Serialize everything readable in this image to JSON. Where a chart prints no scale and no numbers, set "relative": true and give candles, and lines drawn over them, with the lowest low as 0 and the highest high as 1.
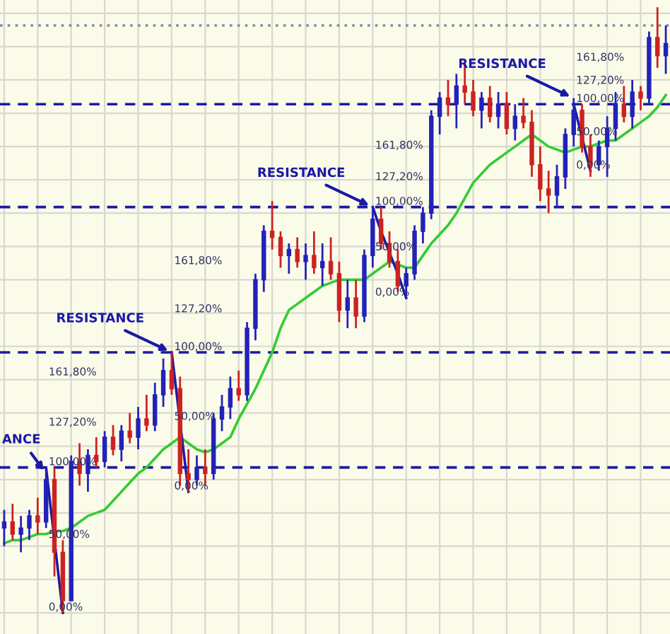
{
  "chart_data": {
    "type": "candlestick",
    "relative": true,
    "grid": true,
    "categories": [
      null,
      null,
      null,
      null,
      null,
      null,
      null,
      null,
      null,
      null,
      null,
      null,
      null,
      null,
      null,
      null,
      null,
      null,
      null,
      null,
      null,
      null,
      null,
      null,
      null,
      null,
      null,
      null,
      null,
      null,
      null,
      null,
      null,
      null,
      null,
      null,
      null,
      null,
      null,
      null,
      null,
      null,
      null,
      null,
      null,
      null,
      null,
      null,
      null,
      null,
      null,
      null,
      null,
      null,
      null,
      null,
      null,
      null,
      null,
      null,
      null,
      null,
      null,
      null,
      null,
      null,
      null,
      null,
      null,
      null,
      null,
      null,
      null,
      null,
      null,
      null,
      null,
      null,
      null,
      null
    ],
    "ohlc": [
      [
        0.14,
        0.17,
        0.11,
        0.15
      ],
      [
        0.15,
        0.18,
        0.12,
        0.13
      ],
      [
        0.13,
        0.16,
        0.1,
        0.14
      ],
      [
        0.14,
        0.17,
        0.12,
        0.16
      ],
      [
        0.16,
        0.19,
        0.13,
        0.15
      ],
      [
        0.15,
        0.24,
        0.14,
        0.22
      ],
      [
        0.22,
        0.24,
        0.06,
        0.1
      ],
      [
        0.1,
        0.12,
        0.0,
        0.02
      ],
      [
        0.02,
        0.26,
        0.02,
        0.25
      ],
      [
        0.25,
        0.28,
        0.21,
        0.23
      ],
      [
        0.23,
        0.27,
        0.2,
        0.26
      ],
      [
        0.26,
        0.29,
        0.24,
        0.25
      ],
      [
        0.25,
        0.3,
        0.24,
        0.29
      ],
      [
        0.29,
        0.31,
        0.26,
        0.27
      ],
      [
        0.27,
        0.31,
        0.25,
        0.3
      ],
      [
        0.3,
        0.33,
        0.28,
        0.29
      ],
      [
        0.29,
        0.34,
        0.27,
        0.32
      ],
      [
        0.32,
        0.36,
        0.3,
        0.31
      ],
      [
        0.31,
        0.38,
        0.3,
        0.36
      ],
      [
        0.36,
        0.42,
        0.34,
        0.4
      ],
      [
        0.4,
        0.43,
        0.36,
        0.37
      ],
      [
        0.37,
        0.39,
        0.21,
        0.23
      ],
      [
        0.23,
        0.27,
        0.2,
        0.22
      ],
      [
        0.22,
        0.26,
        0.21,
        0.24
      ],
      [
        0.24,
        0.27,
        0.21,
        0.23
      ],
      [
        0.23,
        0.33,
        0.22,
        0.32
      ],
      [
        0.32,
        0.36,
        0.3,
        0.34
      ],
      [
        0.34,
        0.39,
        0.32,
        0.37
      ],
      [
        0.37,
        0.4,
        0.35,
        0.36
      ],
      [
        0.36,
        0.48,
        0.35,
        0.47
      ],
      [
        0.47,
        0.56,
        0.45,
        0.55
      ],
      [
        0.55,
        0.64,
        0.53,
        0.63
      ],
      [
        0.63,
        0.68,
        0.6,
        0.62
      ],
      [
        0.62,
        0.63,
        0.57,
        0.59
      ],
      [
        0.59,
        0.61,
        0.56,
        0.6
      ],
      [
        0.6,
        0.62,
        0.57,
        0.58
      ],
      [
        0.58,
        0.61,
        0.55,
        0.59
      ],
      [
        0.59,
        0.63,
        0.56,
        0.57
      ],
      [
        0.57,
        0.61,
        0.54,
        0.58
      ],
      [
        0.58,
        0.62,
        0.55,
        0.56
      ],
      [
        0.56,
        0.58,
        0.48,
        0.5
      ],
      [
        0.5,
        0.55,
        0.47,
        0.52
      ],
      [
        0.52,
        0.55,
        0.47,
        0.49
      ],
      [
        0.49,
        0.6,
        0.48,
        0.59
      ],
      [
        0.59,
        0.67,
        0.57,
        0.65
      ],
      [
        0.65,
        0.67,
        0.6,
        0.61
      ],
      [
        0.61,
        0.63,
        0.57,
        0.58
      ],
      [
        0.58,
        0.6,
        0.53,
        0.54
      ],
      [
        0.54,
        0.57,
        0.52,
        0.56
      ],
      [
        0.56,
        0.64,
        0.55,
        0.63
      ],
      [
        0.63,
        0.67,
        0.61,
        0.66
      ],
      [
        0.66,
        0.83,
        0.65,
        0.82
      ],
      [
        0.82,
        0.86,
        0.79,
        0.85
      ],
      [
        0.85,
        0.88,
        0.82,
        0.84
      ],
      [
        0.84,
        0.89,
        0.8,
        0.87
      ],
      [
        0.87,
        0.91,
        0.84,
        0.86
      ],
      [
        0.86,
        0.88,
        0.82,
        0.83
      ],
      [
        0.83,
        0.86,
        0.8,
        0.85
      ],
      [
        0.85,
        0.87,
        0.81,
        0.82
      ],
      [
        0.82,
        0.86,
        0.8,
        0.84
      ],
      [
        0.84,
        0.86,
        0.79,
        0.8
      ],
      [
        0.8,
        0.84,
        0.78,
        0.82
      ],
      [
        0.82,
        0.85,
        0.8,
        0.81
      ],
      [
        0.81,
        0.83,
        0.72,
        0.74
      ],
      [
        0.74,
        0.77,
        0.68,
        0.7
      ],
      [
        0.7,
        0.73,
        0.66,
        0.69
      ],
      [
        0.69,
        0.74,
        0.67,
        0.72
      ],
      [
        0.72,
        0.8,
        0.7,
        0.79
      ],
      [
        0.79,
        0.85,
        0.77,
        0.83
      ],
      [
        0.83,
        0.84,
        0.76,
        0.77
      ],
      [
        0.77,
        0.79,
        0.72,
        0.74
      ],
      [
        0.74,
        0.78,
        0.73,
        0.77
      ],
      [
        0.77,
        0.82,
        0.72,
        0.8
      ],
      [
        0.8,
        0.86,
        0.78,
        0.84
      ],
      [
        0.84,
        0.87,
        0.81,
        0.82
      ],
      [
        0.82,
        0.88,
        0.8,
        0.86
      ],
      [
        0.86,
        0.87,
        0.83,
        0.85
      ],
      [
        0.85,
        0.96,
        0.84,
        0.95
      ],
      [
        0.95,
        1.0,
        0.9,
        0.92
      ],
      [
        0.92,
        0.97,
        0.89,
        0.94
      ]
    ],
    "colors": [
      "#2222bb",
      "#cc2222",
      "#2222bb",
      "#2222bb",
      "#cc2222",
      "#2222bb",
      "#cc2222",
      "#cc2222",
      "#2222bb",
      "#cc2222",
      "#2222bb",
      "#cc2222",
      "#2222bb",
      "#cc2222",
      "#2222bb",
      "#cc2222",
      "#2222bb",
      "#cc2222",
      "#2222bb",
      "#2222bb",
      "#cc2222",
      "#cc2222",
      "#cc2222",
      "#2222bb",
      "#cc2222",
      "#2222bb",
      "#2222bb",
      "#2222bb",
      "#cc2222",
      "#2222bb",
      "#2222bb",
      "#2222bb",
      "#cc2222",
      "#cc2222",
      "#2222bb",
      "#cc2222",
      "#2222bb",
      "#cc2222",
      "#2222bb",
      "#cc2222",
      "#cc2222",
      "#2222bb",
      "#cc2222",
      "#2222bb",
      "#2222bb",
      "#cc2222",
      "#cc2222",
      "#cc2222",
      "#2222bb",
      "#2222bb",
      "#2222bb",
      "#2222bb",
      "#2222bb",
      "#cc2222",
      "#2222bb",
      "#cc2222",
      "#cc2222",
      "#2222bb",
      "#cc2222",
      "#2222bb",
      "#cc2222",
      "#2222bb",
      "#cc2222",
      "#cc2222",
      "#cc2222",
      "#cc2222",
      "#2222bb",
      "#2222bb",
      "#2222bb",
      "#cc2222",
      "#cc2222",
      "#2222bb",
      "#2222bb",
      "#2222bb",
      "#cc2222",
      "#2222bb",
      "#cc2222",
      "#2222bb",
      "#cc2222",
      "#2222bb"
    ],
    "series": [
      {
        "type": "line",
        "color": "#33cc33",
        "values": [
          0.115,
          0.12,
          0.12,
          0.125,
          0.13,
          0.13,
          0.135,
          0.135,
          0.14,
          0.15,
          0.16,
          0.165,
          0.17,
          0.185,
          0.2,
          0.215,
          0.23,
          0.24,
          0.255,
          0.27,
          0.28,
          0.29,
          0.28,
          0.27,
          0.265,
          0.27,
          0.28,
          0.29,
          0.32,
          0.345,
          0.37,
          0.4,
          0.43,
          0.47,
          0.5,
          0.51,
          0.52,
          0.53,
          0.54,
          0.545,
          0.55,
          0.55,
          0.55,
          0.55,
          0.56,
          0.57,
          0.58,
          0.575,
          0.57,
          0.57,
          0.59,
          0.61,
          0.625,
          0.64,
          0.66,
          0.685,
          0.71,
          0.725,
          0.74,
          0.75,
          0.76,
          0.77,
          0.78,
          0.79,
          0.78,
          0.77,
          0.765,
          0.76,
          0.765,
          0.77,
          0.77,
          0.775,
          0.78,
          0.78,
          0.79,
          0.8,
          0.81,
          0.82,
          0.835,
          0.855
        ]
      },
      {
        "type": "line",
        "color": "#1a1aa6",
        "values": [
          null,
          null,
          null,
          null,
          null,
          0.24,
          null,
          0.0,
          null,
          null,
          null,
          null,
          null,
          null,
          null,
          null,
          null,
          null,
          null,
          null,
          null,
          null,
          null,
          null,
          null,
          null,
          null,
          null,
          null,
          null,
          null,
          null,
          null,
          null,
          null,
          null,
          null,
          null,
          null,
          null,
          null,
          null,
          null,
          null,
          null,
          null,
          null,
          null,
          null,
          null,
          null,
          null,
          null,
          null,
          null,
          null,
          null,
          null,
          null,
          null,
          null,
          null,
          null,
          null,
          null,
          null,
          null,
          null,
          null,
          null,
          null,
          null,
          null,
          null,
          null,
          null,
          null,
          null,
          null,
          null
        ]
      },
      {
        "type": "line",
        "color": "#1a1aa6",
        "values": [
          null,
          null,
          null,
          null,
          null,
          null,
          null,
          null,
          null,
          null,
          null,
          null,
          null,
          null,
          null,
          null,
          null,
          null,
          null,
          null,
          0.43,
          null,
          0.2,
          null,
          null,
          null,
          null,
          null,
          null,
          null,
          null,
          null,
          null,
          null,
          null,
          null,
          null,
          null,
          null,
          null,
          null,
          null,
          null,
          null,
          null,
          null,
          null,
          null,
          null,
          null,
          null,
          null,
          null,
          null,
          null,
          null,
          null,
          null,
          null,
          null,
          null,
          null,
          null,
          null,
          null,
          null,
          null,
          null,
          null,
          null,
          null,
          null,
          null,
          null,
          null,
          null,
          null,
          null,
          null,
          null
        ]
      },
      {
        "type": "line",
        "color": "#1a1aa6",
        "values": [
          null,
          null,
          null,
          null,
          null,
          null,
          null,
          null,
          null,
          null,
          null,
          null,
          null,
          null,
          null,
          null,
          null,
          null,
          null,
          null,
          null,
          null,
          null,
          null,
          null,
          null,
          null,
          null,
          null,
          null,
          null,
          null,
          null,
          null,
          null,
          null,
          null,
          null,
          null,
          null,
          null,
          null,
          null,
          null,
          0.67,
          0.63,
          0.595,
          0.56,
          0.52,
          null,
          null,
          null,
          null,
          null,
          null,
          null,
          null,
          null,
          null,
          null,
          null,
          null,
          null,
          null,
          null,
          null,
          null,
          null,
          null,
          null,
          null,
          null,
          null,
          null,
          null,
          null,
          null,
          null,
          null,
          null
        ]
      },
      {
        "type": "line",
        "color": "#1a1aa6",
        "values": [
          null,
          null,
          null,
          null,
          null,
          null,
          null,
          null,
          null,
          null,
          null,
          null,
          null,
          null,
          null,
          null,
          null,
          null,
          null,
          null,
          null,
          null,
          null,
          null,
          null,
          null,
          null,
          null,
          null,
          null,
          null,
          null,
          null,
          null,
          null,
          null,
          null,
          null,
          null,
          null,
          null,
          null,
          null,
          null,
          null,
          null,
          null,
          null,
          null,
          null,
          null,
          null,
          null,
          null,
          null,
          null,
          null,
          null,
          null,
          null,
          null,
          null,
          null,
          null,
          null,
          null,
          null,
          null,
          0.84,
          0.785,
          0.73,
          null,
          null,
          null,
          null,
          null,
          null,
          null,
          null,
          null
        ]
      }
    ],
    "ref_lines": [
      {
        "axis": "y",
        "value": 0.97,
        "color": "#8888aa",
        "line_style": "dotted"
      },
      {
        "axis": "y",
        "value": 0.84,
        "color": "#1a1aa6",
        "line_style": "dashed"
      },
      {
        "axis": "y",
        "value": 0.67,
        "color": "#1a1aa6",
        "line_style": "dashed"
      },
      {
        "axis": "y",
        "value": 0.43,
        "color": "#1a1aa6",
        "line_style": "dashed"
      },
      {
        "axis": "y",
        "value": 0.24,
        "color": "#1a1aa6",
        "line_style": "dashed"
      }
    ],
    "annotations": [
      {
        "text": "ANCE",
        "y": 0.23
      },
      {
        "text": "RESISTANCE",
        "y": 0.43
      },
      {
        "text": "RESISTANCE",
        "y": 0.67
      },
      {
        "text": "RESISTANCE",
        "y": 0.85
      },
      "161,80%",
      "127,20%",
      "100,00%",
      "50,00%",
      "0,00%",
      "161,80%",
      "127,20%",
      "100,00%",
      "50,00%",
      "0,00%",
      "161,80%",
      "127,20%",
      "100,00%",
      "50,00%",
      "0,00%",
      "161,80%",
      "127,20%",
      "100,00%",
      "50,00%",
      "0,00%"
    ]
  }
}
